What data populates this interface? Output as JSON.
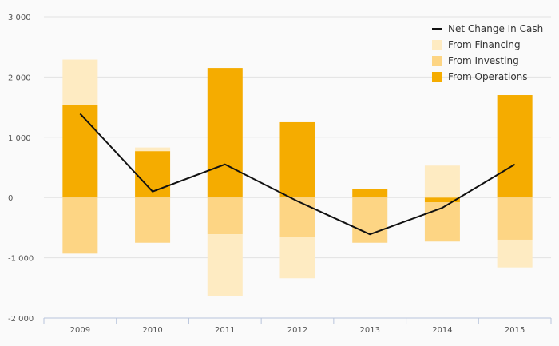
{
  "chart_data": {
    "type": "bar",
    "categories": [
      "2009",
      "2010",
      "2011",
      "2012",
      "2013",
      "2014",
      "2015"
    ],
    "ylim": [
      -2000,
      3000
    ],
    "yticks": [
      -2000,
      -1000,
      0,
      1000,
      2000,
      3000
    ],
    "ytick_labels": [
      "-2 000",
      "-1 000",
      "0",
      "1 000",
      "2 000",
      "3 000"
    ],
    "grid": true,
    "legend_position": "top-right",
    "series": [
      {
        "name": "From Operations",
        "kind": "bar",
        "color": "#f5ac00",
        "values": [
          1530,
          770,
          2150,
          1250,
          140,
          -80,
          1700
        ]
      },
      {
        "name": "From Investing",
        "kind": "bar",
        "color": "#fdd584",
        "values": [
          -930,
          -750,
          -610,
          -660,
          -750,
          -650,
          -700
        ]
      },
      {
        "name": "From Financing",
        "kind": "bar",
        "color": "#feebc2",
        "values": [
          760,
          60,
          -1030,
          -680,
          0,
          530,
          -460
        ]
      },
      {
        "name": "Net Change In Cash",
        "kind": "line",
        "color": "#111111",
        "values": [
          1390,
          100,
          550,
          -60,
          -610,
          -170,
          550
        ]
      }
    ],
    "legend_order": [
      "Net Change In Cash",
      "From Financing",
      "From Investing",
      "From Operations"
    ]
  }
}
